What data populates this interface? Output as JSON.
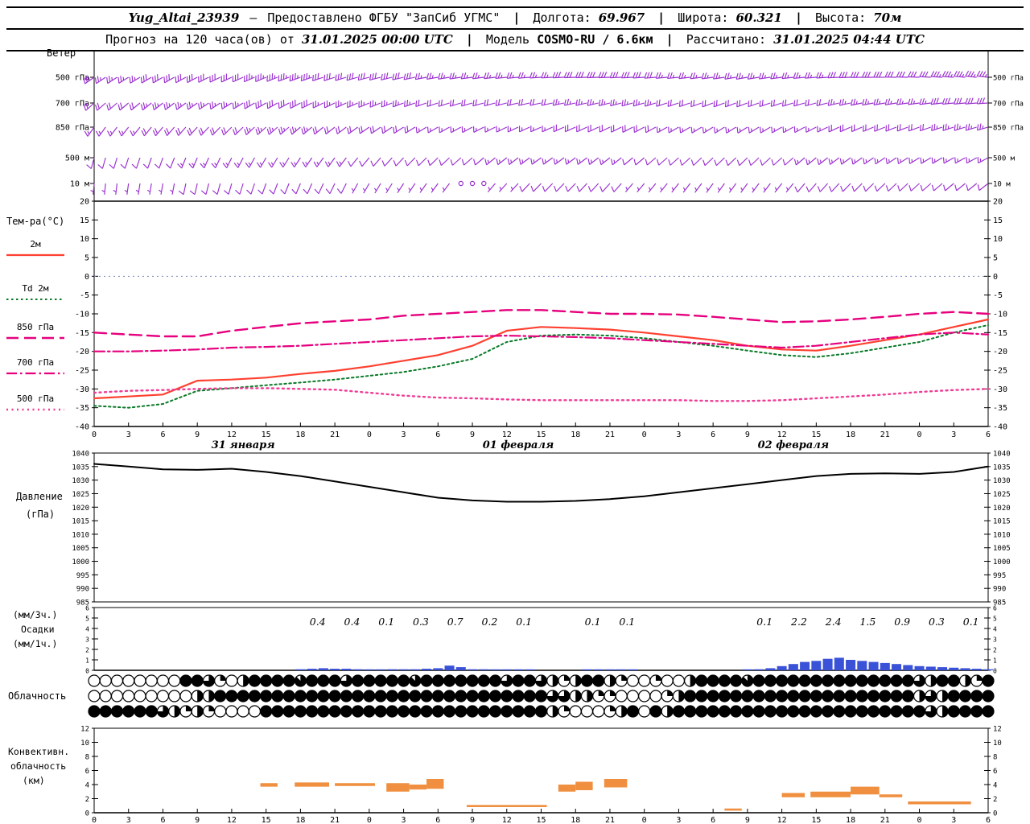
{
  "header": {
    "station": "Yug_Altai_23939",
    "dash": "–",
    "provider": "Предоставлено ФГБУ \"ЗапСиб УГМС\"",
    "sep": "|",
    "lon_label": "Долгота:",
    "lon": "69.967",
    "lat_label": "Широта:",
    "lat": "60.321",
    "alt_label": "Высота:",
    "alt": "70м"
  },
  "subheader": {
    "prefix": "Прогноз на 120 часа(ов) от",
    "init_time": "31.01.2025 00:00 UTC",
    "sep": "|",
    "model_label": "Модель",
    "model": "COSMO-RU / 6.6км",
    "calc_label": "Рассчитано:",
    "calc_time": "31.01.2025 04:44 UTC"
  },
  "colors": {
    "barb": "#9a2fd0",
    "t2m": "#ff4030",
    "td2m": "#0a7a28",
    "t850": "#e6007e",
    "t700": "#e6007e",
    "t500": "#f03c96",
    "pressure": "#000000",
    "precip_bar": "#3a52d8",
    "convective": "#ef8f3f",
    "zero_line": "#7788bb"
  },
  "chart_data": {
    "type": "meteogram",
    "x_axis": {
      "hours": [
        0,
        3,
        6,
        9,
        12,
        15,
        18,
        21,
        24,
        27,
        30,
        33,
        36,
        39,
        42,
        45,
        48,
        51,
        54,
        57,
        60,
        63,
        66,
        69,
        72,
        75,
        78
      ],
      "xtick_labels": [
        "0",
        "3",
        "6",
        "9",
        "12",
        "15",
        "18",
        "21",
        "0",
        "3",
        "6",
        "9",
        "12",
        "15",
        "18",
        "21",
        "0",
        "3",
        "6",
        "9",
        "12",
        "15",
        "18",
        "21",
        "0",
        "3",
        "6"
      ],
      "date_labels": [
        {
          "text": "31 января",
          "hour": 13
        },
        {
          "text": "01 февраля",
          "hour": 37
        },
        {
          "text": "02 февраля",
          "hour": 61
        }
      ]
    },
    "wind": {
      "title": "Ветер",
      "levels": [
        {
          "name": "500 гПа",
          "dirs": [
            235,
            238,
            240,
            242,
            245,
            247,
            250,
            252,
            255,
            257,
            260,
            262,
            264,
            266,
            268,
            268,
            266,
            264,
            262,
            260,
            262,
            265,
            268,
            270,
            272,
            274,
            276
          ],
          "speeds": [
            25,
            25,
            30,
            30,
            30,
            35,
            35,
            30,
            30,
            30,
            25,
            25,
            25,
            25,
            30,
            30,
            30,
            25,
            25,
            25,
            25,
            25,
            30,
            30,
            30,
            35,
            35
          ]
        },
        {
          "name": "700 гПа",
          "dirs": [
            228,
            230,
            232,
            235,
            238,
            240,
            242,
            245,
            247,
            250,
            252,
            254,
            256,
            258,
            258,
            256,
            254,
            252,
            250,
            250,
            252,
            255,
            258,
            260,
            262,
            264,
            266
          ],
          "speeds": [
            20,
            20,
            25,
            25,
            25,
            30,
            30,
            25,
            25,
            25,
            20,
            20,
            20,
            20,
            25,
            25,
            25,
            20,
            20,
            20,
            20,
            20,
            25,
            25,
            25,
            30,
            30
          ]
        },
        {
          "name": "850 гПа",
          "dirs": [
            215,
            218,
            220,
            222,
            225,
            228,
            230,
            232,
            235,
            237,
            240,
            242,
            244,
            246,
            246,
            244,
            242,
            240,
            238,
            238,
            240,
            243,
            246,
            248,
            250,
            252,
            254
          ],
          "speeds": [
            15,
            15,
            20,
            20,
            20,
            25,
            25,
            20,
            20,
            20,
            15,
            15,
            15,
            15,
            20,
            20,
            20,
            15,
            15,
            15,
            15,
            15,
            20,
            20,
            20,
            25,
            25
          ]
        },
        {
          "name": "500 м",
          "dirs": [
            195,
            198,
            200,
            203,
            206,
            210,
            213,
            216,
            220,
            223,
            226,
            229,
            232,
            234,
            234,
            232,
            230,
            228,
            226,
            226,
            228,
            231,
            234,
            236,
            238,
            240,
            242
          ],
          "speeds": [
            10,
            10,
            10,
            15,
            15,
            15,
            15,
            15,
            10,
            10,
            10,
            10,
            15,
            15,
            15,
            15,
            10,
            10,
            10,
            10,
            10,
            15,
            15,
            15,
            15,
            15,
            15
          ]
        },
        {
          "name": "10 м",
          "dirs": [
            185,
            188,
            190,
            193,
            196,
            200,
            203,
            206,
            210,
            213,
            216,
            219,
            222,
            224,
            224,
            222,
            220,
            218,
            216,
            216,
            218,
            221,
            224,
            226,
            228,
            230,
            232
          ],
          "speeds": [
            5,
            5,
            5,
            10,
            10,
            10,
            10,
            10,
            5,
            5,
            5,
            0,
            5,
            10,
            10,
            10,
            5,
            5,
            5,
            5,
            5,
            10,
            10,
            10,
            10,
            10,
            10
          ]
        }
      ]
    },
    "temperature": {
      "ylabel": "Тем-ра(°C)",
      "ylim": [
        -40,
        20
      ],
      "yticks": [
        20,
        15,
        10,
        5,
        0,
        -5,
        -10,
        -15,
        -20,
        -25,
        -30,
        -35,
        -40
      ],
      "series": [
        {
          "name": "2м",
          "color_key": "t2m",
          "style": "solid",
          "width": 2.2,
          "values": [
            -32.5,
            -32,
            -31.5,
            -27.8,
            -27.5,
            -27,
            -26,
            -25.2,
            -24,
            -22.5,
            -21,
            -18.5,
            -14.5,
            -13.5,
            -13.8,
            -14.2,
            -15,
            -16,
            -17,
            -18.5,
            -19.5,
            -19.8,
            -18.5,
            -17,
            -15.5,
            -13.5,
            -11.5
          ]
        },
        {
          "name": "Td 2м",
          "color_key": "td2m",
          "style": "dotted",
          "width": 2,
          "values": [
            -34.5,
            -35,
            -34,
            -30.5,
            -29.8,
            -29,
            -28.3,
            -27.5,
            -26.5,
            -25.5,
            -24,
            -22,
            -17.5,
            -15.8,
            -15.5,
            -15.8,
            -16.5,
            -17.5,
            -18.5,
            -19.8,
            -21,
            -21.5,
            -20.5,
            -19,
            -17.5,
            -15,
            -13
          ]
        },
        {
          "name": "850 гПа",
          "color_key": "t850",
          "style": "longdash",
          "width": 2.4,
          "values": [
            -15,
            -15.5,
            -16,
            -16,
            -14.5,
            -13.5,
            -12.5,
            -12,
            -11.5,
            -10.5,
            -10,
            -9.5,
            -9,
            -9,
            -9.5,
            -10,
            -10,
            -10.2,
            -10.8,
            -11.5,
            -12.2,
            -12,
            -11.5,
            -10.8,
            -10,
            -9.5,
            -10
          ]
        },
        {
          "name": "700 гПа",
          "color_key": "t700",
          "style": "dashdot",
          "width": 2.2,
          "values": [
            -20,
            -20,
            -19.8,
            -19.5,
            -19,
            -18.8,
            -18.5,
            -18,
            -17.5,
            -17,
            -16.5,
            -16,
            -15.8,
            -16,
            -16.2,
            -16.5,
            -17,
            -17.5,
            -18,
            -18.5,
            -19,
            -18.5,
            -17.5,
            -16.5,
            -15.5,
            -15,
            -15.5
          ]
        },
        {
          "name": "500 гПа",
          "color_key": "t500",
          "style": "finedot",
          "width": 2.4,
          "values": [
            -31,
            -30.5,
            -30.3,
            -30,
            -29.8,
            -29.8,
            -30,
            -30.2,
            -31,
            -31.8,
            -32.3,
            -32.5,
            -32.8,
            -33,
            -33,
            -33,
            -33,
            -33,
            -33.2,
            -33.2,
            -33,
            -32.5,
            -32,
            -31.5,
            -30.8,
            -30.3,
            -30
          ]
        }
      ]
    },
    "pressure": {
      "ylabel_lines": [
        "Давление",
        "(гПа)"
      ],
      "ylim": [
        985,
        1040
      ],
      "yticks": [
        1040,
        1035,
        1030,
        1025,
        1020,
        1015,
        1010,
        1005,
        1000,
        995,
        990,
        985
      ],
      "values": [
        1036,
        1035,
        1034,
        1033.8,
        1034.2,
        1033,
        1031.5,
        1029.5,
        1027.5,
        1025.5,
        1023.5,
        1022.5,
        1022,
        1022,
        1022.3,
        1023,
        1024,
        1025.5,
        1027,
        1028.5,
        1030,
        1031.5,
        1032.3,
        1032.5,
        1032.3,
        1033,
        1035
      ]
    },
    "precipitation": {
      "left_labels": [
        "(мм/3ч.)",
        "Осадки",
        "(мм/1ч.)"
      ],
      "ylim": [
        0,
        6
      ],
      "yticks": [
        6,
        5,
        4,
        3,
        2,
        1,
        0
      ],
      "amounts_3h": {
        "hours": [
          19.5,
          22.5,
          25.5,
          28.5,
          31.5,
          34.5,
          37.5,
          43.5,
          46.5,
          58.5,
          61.5,
          64.5,
          67.5,
          70.5,
          73.5,
          76.5
        ],
        "values": [
          "0.4",
          "0.4",
          "0.1",
          "0.3",
          "0.7",
          "0.2",
          "0.1",
          "0.1",
          "0.1",
          "0.1",
          "2.2",
          "2.4",
          "1.5",
          "0.9",
          "0.3",
          "0.1"
        ]
      },
      "bars_1h": {
        "hours": [
          18,
          19,
          20,
          21,
          22,
          23,
          24,
          25,
          26,
          27,
          28,
          29,
          30,
          31,
          32,
          33,
          34,
          35,
          36,
          37,
          38,
          43,
          44,
          45,
          46,
          47,
          57,
          58,
          59,
          60,
          61,
          62,
          63,
          64,
          65,
          66,
          67,
          68,
          69,
          70,
          71,
          72,
          73,
          74,
          75,
          76,
          77,
          78
        ],
        "values": [
          0.1,
          0.15,
          0.2,
          0.15,
          0.15,
          0.1,
          0.05,
          0.05,
          0.1,
          0.1,
          0.1,
          0.15,
          0.2,
          0.45,
          0.3,
          0.1,
          0.1,
          0.05,
          0.05,
          0.05,
          0.05,
          0.05,
          0.05,
          0.05,
          0.05,
          0.05,
          0.05,
          0.1,
          0.2,
          0.4,
          0.6,
          0.8,
          0.9,
          1.1,
          1.2,
          1.0,
          0.9,
          0.8,
          0.7,
          0.6,
          0.5,
          0.4,
          0.35,
          0.3,
          0.25,
          0.2,
          0.15,
          0.1
        ]
      }
    },
    "cloudiness": {
      "label": "Облачность",
      "rows_octas": [
        [
          0,
          0,
          0,
          0,
          0,
          0,
          0,
          0,
          8,
          8,
          6,
          2,
          0,
          4,
          8,
          8,
          8,
          8,
          7,
          8,
          8,
          8,
          6,
          8,
          8,
          8,
          8,
          8,
          7,
          8,
          8,
          8,
          8,
          8,
          8,
          8,
          6,
          8,
          8,
          6,
          4,
          2,
          4,
          8,
          8,
          4,
          2,
          0,
          0,
          2,
          0,
          0,
          4,
          8,
          8,
          8,
          8,
          7,
          8,
          8,
          8,
          8,
          8,
          8,
          8,
          8,
          8,
          8,
          8,
          8,
          8,
          8,
          6,
          4,
          8,
          8,
          4,
          2,
          8
        ],
        [
          0,
          0,
          0,
          0,
          0,
          0,
          0,
          0,
          0,
          4,
          4,
          8,
          8,
          8,
          8,
          8,
          8,
          8,
          8,
          8,
          8,
          8,
          8,
          8,
          8,
          8,
          8,
          8,
          8,
          8,
          8,
          8,
          8,
          8,
          8,
          8,
          8,
          8,
          8,
          8,
          6,
          6,
          4,
          4,
          2,
          2,
          0,
          0,
          0,
          0,
          2,
          4,
          8,
          8,
          8,
          8,
          8,
          8,
          8,
          8,
          8,
          8,
          8,
          8,
          8,
          8,
          8,
          8,
          8,
          8,
          8,
          8,
          4,
          6,
          4,
          8,
          8,
          8,
          8
        ],
        [
          8,
          8,
          8,
          8,
          8,
          8,
          6,
          4,
          2,
          4,
          2,
          0,
          0,
          0,
          0,
          8,
          8,
          8,
          8,
          8,
          8,
          8,
          8,
          8,
          8,
          8,
          8,
          8,
          8,
          8,
          8,
          8,
          8,
          8,
          8,
          8,
          8,
          8,
          8,
          8,
          4,
          2,
          0,
          0,
          0,
          2,
          4,
          8,
          0,
          8,
          4,
          8,
          8,
          8,
          8,
          8,
          8,
          8,
          8,
          8,
          8,
          8,
          8,
          8,
          8,
          8,
          8,
          8,
          8,
          8,
          8,
          8,
          8,
          6,
          4,
          8,
          8,
          8,
          8
        ]
      ]
    },
    "convective": {
      "left_labels": [
        "Конвективн.",
        "облачность",
        "(км)"
      ],
      "ylim": [
        0,
        12
      ],
      "yticks": [
        12,
        10,
        8,
        6,
        4,
        2,
        0
      ],
      "segments": [
        [
          14.5,
          16,
          3.7,
          4.2
        ],
        [
          17.5,
          20.5,
          3.7,
          4.3
        ],
        [
          21,
          24.5,
          3.8,
          4.2
        ],
        [
          25.5,
          27.5,
          3.0,
          4.2
        ],
        [
          27.5,
          29,
          3.3,
          4.0
        ],
        [
          29,
          30.5,
          3.4,
          4.8
        ],
        [
          32.5,
          39.5,
          0.8,
          1.1
        ],
        [
          40.5,
          42,
          3.0,
          4.0
        ],
        [
          42,
          43.5,
          3.2,
          4.4
        ],
        [
          44.5,
          46.5,
          3.6,
          4.8
        ],
        [
          55,
          56.5,
          0.3,
          0.6
        ],
        [
          60,
          62,
          2.2,
          2.8
        ],
        [
          62.5,
          66,
          2.2,
          3.0
        ],
        [
          66,
          68.5,
          2.6,
          3.7
        ],
        [
          68.5,
          70.5,
          2.2,
          2.6
        ],
        [
          71,
          76.5,
          1.2,
          1.6
        ]
      ]
    }
  }
}
